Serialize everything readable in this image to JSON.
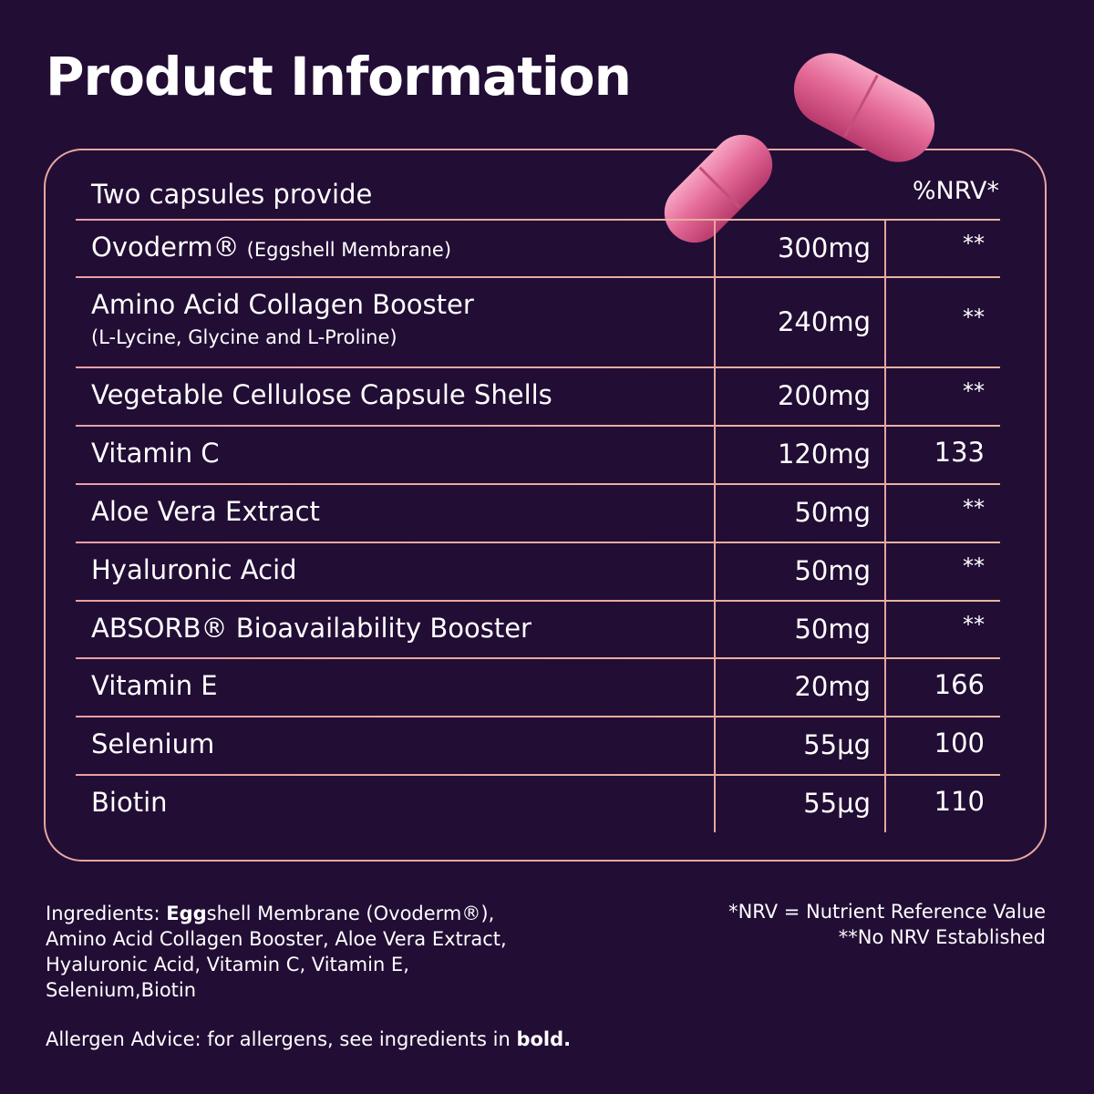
{
  "title": "Product Information",
  "table": {
    "header": {
      "label": "Two capsules provide",
      "nrv": "%NRV*"
    },
    "rows": [
      {
        "name": "Ovoderm®",
        "note": "(Eggshell Membrane)",
        "amount": "300mg",
        "nrv": "**"
      },
      {
        "name": "Amino Acid Collagen Booster",
        "note": "(L-Lycine, Glycine and L-Proline)",
        "amount": "240mg",
        "nrv": "**"
      },
      {
        "name": "Vegetable Cellulose Capsule Shells",
        "amount": "200mg",
        "nrv": "**"
      },
      {
        "name": "Vitamin C",
        "amount": "120mg",
        "nrv": "133"
      },
      {
        "name": "Aloe Vera Extract",
        "amount": "50mg",
        "nrv": "**"
      },
      {
        "name": "Hyaluronic Acid",
        "amount": "50mg",
        "nrv": "**"
      },
      {
        "name": "ABSORB® Bioavailability Booster",
        "amount": "50mg",
        "nrv": "**"
      },
      {
        "name": "Vitamin E",
        "amount": "20mg",
        "nrv": "166"
      },
      {
        "name": "Selenium",
        "amount": "55µg",
        "nrv": "100"
      },
      {
        "name": "Biotin",
        "amount": "55µg",
        "nrv": "110"
      }
    ]
  },
  "ingredients": [
    "Ingredients: ",
    "Egg",
    "shell Membrane (Ovoderm®), Amino Acid Collagen Booster, Aloe Vera Extract, Hyaluronic Acid, Vitamin C, Vitamin E, Selenium,Biotin"
  ],
  "allergen": [
    "Allergen Advice: for allergens, see ingredients in ",
    "bold."
  ],
  "notes": [
    "*NRV = Nutrient Reference Value",
    "**No NRV Established"
  ]
}
